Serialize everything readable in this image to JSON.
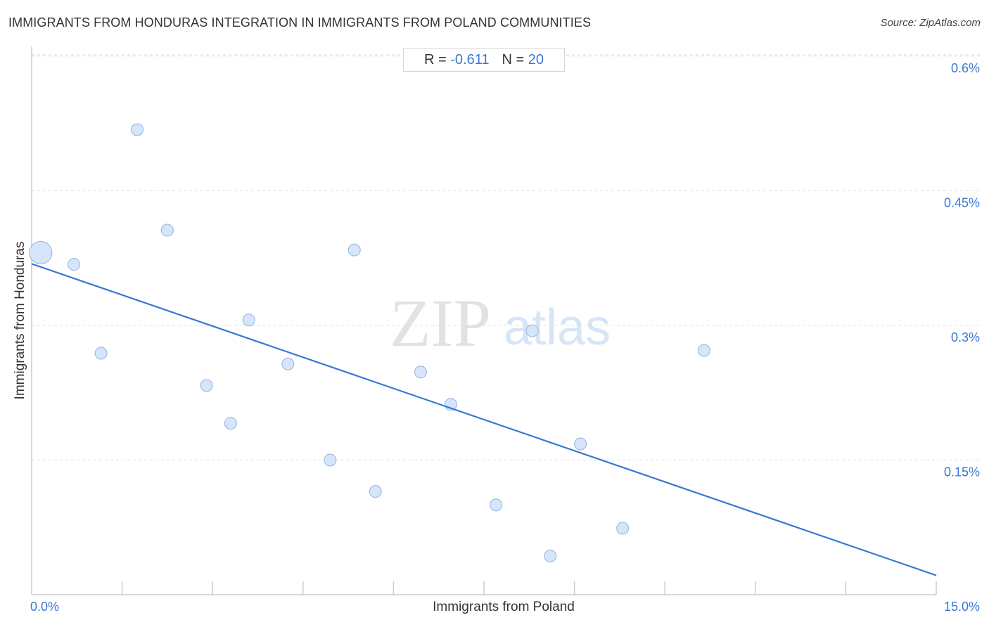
{
  "header": {
    "title": "IMMIGRANTS FROM HONDURAS INTEGRATION IN IMMIGRANTS FROM POLAND COMMUNITIES",
    "source": "Source: ZipAtlas.com"
  },
  "stats": {
    "r_label": "R = ",
    "r_value": "-0.611",
    "n_label": "N = ",
    "n_value": "20"
  },
  "watermark": {
    "zip": "ZIP",
    "atlas": "atlas"
  },
  "colors": {
    "accent": "#3a78d4",
    "point_fill": "#d6e5f9",
    "point_stroke": "#8fb3e3",
    "grid": "#dddddd",
    "axis": "#cccccc"
  },
  "chart_data": {
    "type": "scatter",
    "xlabel": "Immigrants from Poland",
    "ylabel": "Immigrants from Honduras",
    "xlim": [
      0,
      15
    ],
    "ylim": [
      0,
      0.62
    ],
    "x_tick_labels": [
      {
        "value": 0,
        "label": "0.0%"
      },
      {
        "value": 15,
        "label": "15.0%"
      }
    ],
    "y_tick_labels": [
      {
        "value": 0.15,
        "label": "0.15%"
      },
      {
        "value": 0.3,
        "label": "0.3%"
      },
      {
        "value": 0.45,
        "label": "0.45%"
      },
      {
        "value": 0.6,
        "label": "0.6%"
      }
    ],
    "x_minor_ticks": [
      1.5,
      3.0,
      4.5,
      6.0,
      7.5,
      9.0,
      10.5,
      12.0,
      13.5
    ],
    "grid": true,
    "points": [
      {
        "x": 0.15,
        "y": 0.381,
        "size": "large"
      },
      {
        "x": 0.7,
        "y": 0.368,
        "size": "small"
      },
      {
        "x": 1.15,
        "y": 0.269,
        "size": "small"
      },
      {
        "x": 1.75,
        "y": 0.518,
        "size": "small"
      },
      {
        "x": 2.25,
        "y": 0.406,
        "size": "small"
      },
      {
        "x": 2.9,
        "y": 0.233,
        "size": "small"
      },
      {
        "x": 3.3,
        "y": 0.191,
        "size": "small"
      },
      {
        "x": 3.6,
        "y": 0.306,
        "size": "small"
      },
      {
        "x": 4.25,
        "y": 0.257,
        "size": "small"
      },
      {
        "x": 4.95,
        "y": 0.15,
        "size": "small"
      },
      {
        "x": 5.35,
        "y": 0.384,
        "size": "small"
      },
      {
        "x": 5.7,
        "y": 0.115,
        "size": "small"
      },
      {
        "x": 6.45,
        "y": 0.248,
        "size": "small"
      },
      {
        "x": 6.95,
        "y": 0.212,
        "size": "small"
      },
      {
        "x": 7.7,
        "y": 0.1,
        "size": "small"
      },
      {
        "x": 8.3,
        "y": 0.294,
        "size": "small"
      },
      {
        "x": 8.6,
        "y": 0.043,
        "size": "small"
      },
      {
        "x": 9.1,
        "y": 0.168,
        "size": "small"
      },
      {
        "x": 9.8,
        "y": 0.074,
        "size": "small"
      },
      {
        "x": 11.15,
        "y": 0.272,
        "size": "small"
      }
    ],
    "trendline": {
      "x": [
        0,
        15
      ],
      "y": [
        0.3686,
        0.0215
      ]
    }
  }
}
